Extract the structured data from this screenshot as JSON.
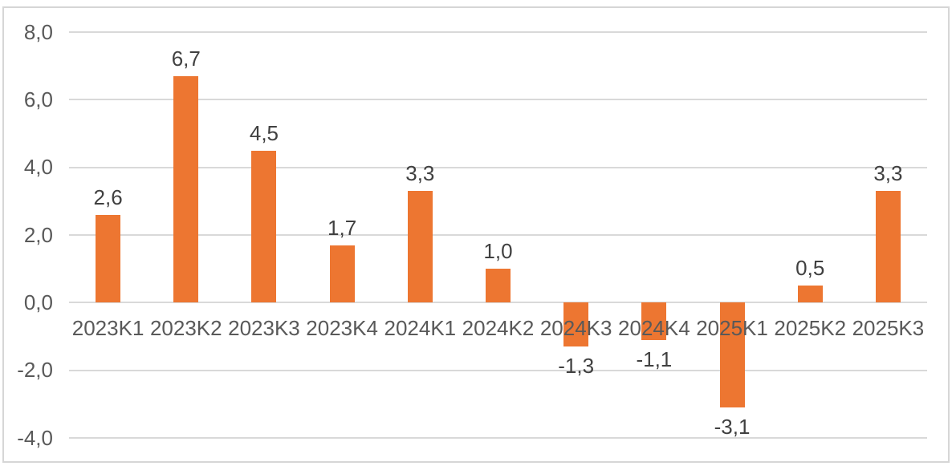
{
  "chart_data": {
    "type": "bar",
    "title": "",
    "xlabel": "",
    "ylabel": "",
    "categories": [
      "2023K1",
      "2023K2",
      "2023K3",
      "2023K4",
      "2024K1",
      "2024K2",
      "2024K3",
      "2024K4",
      "2025K1",
      "2025K2",
      "2025K3"
    ],
    "values": [
      2.6,
      6.7,
      4.5,
      1.7,
      3.3,
      1.0,
      -1.3,
      -1.1,
      -3.1,
      0.5,
      3.3
    ],
    "value_labels": [
      "2,6",
      "6,7",
      "4,5",
      "1,7",
      "3,3",
      "1,0",
      "-1,3",
      "-1,1",
      "-3,1",
      "0,5",
      "3,3"
    ],
    "ylim": [
      -4,
      8
    ],
    "ytick_step": 2,
    "yticks": [
      {
        "value": 8,
        "label": "8,0"
      },
      {
        "value": 6,
        "label": "6,0"
      },
      {
        "value": 4,
        "label": "4,0"
      },
      {
        "value": 2,
        "label": "2,0"
      },
      {
        "value": 0,
        "label": "0,0"
      },
      {
        "value": -2,
        "label": "-2,0"
      },
      {
        "value": -4,
        "label": "-4,0"
      }
    ],
    "grid": true,
    "legend_position": "none",
    "decimal_separator": ",",
    "colors": {
      "bar": "#ED7631",
      "gridline": "#D9D9D9",
      "axis_text": "#595959",
      "data_label": "#404040",
      "frame_border": "#D6D6D6",
      "background": "#FFFFFF"
    }
  }
}
